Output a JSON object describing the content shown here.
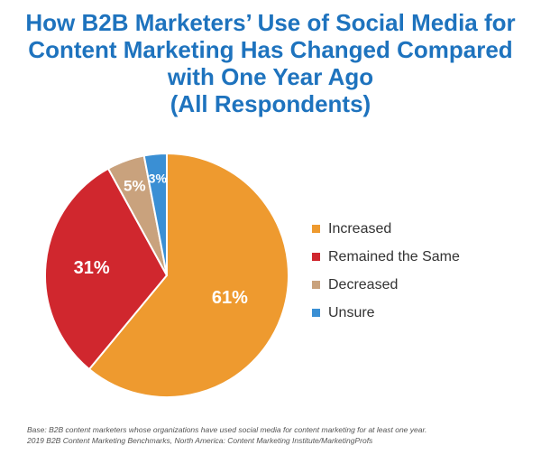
{
  "title_lines": [
    "How B2B Marketers’ Use of Social Media for",
    "Content Marketing Has Changed Compared",
    "with One Year Ago",
    "(All Respondents)"
  ],
  "colors": {
    "title": "#1e73be",
    "increased": "#ee9a2f",
    "remained": "#d0272e",
    "decreased": "#c9a27d",
    "unsure": "#3a8fd4"
  },
  "chart_data": {
    "type": "pie",
    "title": "How B2B Marketers’ Use of Social Media for Content Marketing Has Changed Compared with One Year Ago (All Respondents)",
    "legend_position": "right",
    "slices": [
      {
        "label": "Increased",
        "value": 61,
        "display": "61%",
        "color": "#ee9a2f"
      },
      {
        "label": "Remained the Same",
        "value": 31,
        "display": "31%",
        "color": "#d0272e"
      },
      {
        "label": "Decreased",
        "value": 5,
        "display": "5%",
        "color": "#c9a27d"
      },
      {
        "label": "Unsure",
        "value": 3,
        "display": "3%",
        "color": "#3a8fd4"
      }
    ]
  },
  "footnote": {
    "line1": "Base: B2B content marketers whose organizations have used social media for content marketing for at least one year.",
    "line2": "2019 B2B Content Marketing Benchmarks, North America: Content Marketing Institute/MarketingProfs"
  }
}
